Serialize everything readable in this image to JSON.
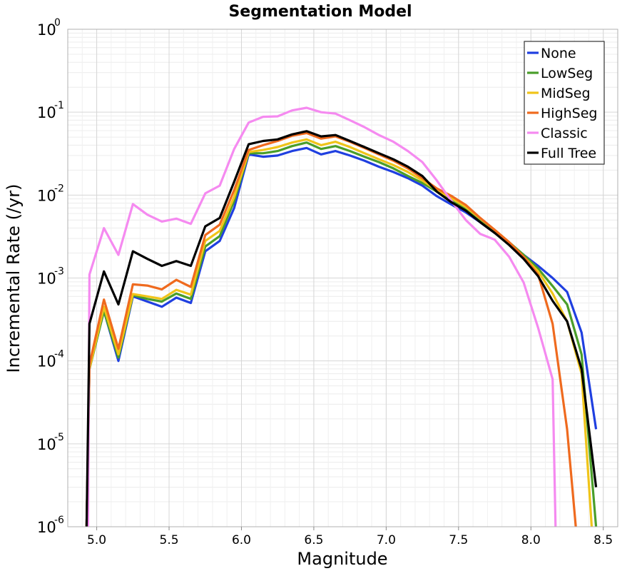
{
  "chart_data": {
    "type": "line",
    "title": "Segmentation Model",
    "xlabel": "Magnitude",
    "ylabel": "Incremental Rate (/yr)",
    "xlim": [
      4.8,
      8.6
    ],
    "ylim": [
      1e-06,
      1
    ],
    "yscale": "log",
    "xticks": [
      "5.0",
      "5.5",
      "6.0",
      "6.5",
      "7.0",
      "7.5",
      "8.0",
      "8.5"
    ],
    "yticks": [
      {
        "base": "10",
        "exp": "-6"
      },
      {
        "base": "10",
        "exp": "-5"
      },
      {
        "base": "10",
        "exp": "-4"
      },
      {
        "base": "10",
        "exp": "-3"
      },
      {
        "base": "10",
        "exp": "-2"
      },
      {
        "base": "10",
        "exp": "-1"
      },
      {
        "base": "10",
        "exp": "0"
      }
    ],
    "grid": true,
    "legend_position": "top-right",
    "series": [
      {
        "name": "None",
        "color": "#1f3fe0",
        "points": [
          [
            4.93,
            1e-06
          ],
          [
            4.95,
            8e-05
          ],
          [
            5.05,
            0.0004
          ],
          [
            5.15,
            0.0001
          ],
          [
            5.25,
            0.0006
          ],
          [
            5.35,
            0.00052
          ],
          [
            5.45,
            0.00045
          ],
          [
            5.55,
            0.00058
          ],
          [
            5.65,
            0.0005
          ],
          [
            5.75,
            0.0021
          ],
          [
            5.85,
            0.0028
          ],
          [
            5.95,
            0.007
          ],
          [
            6.05,
            0.031
          ],
          [
            6.15,
            0.029
          ],
          [
            6.25,
            0.03
          ],
          [
            6.35,
            0.034
          ],
          [
            6.45,
            0.037
          ],
          [
            6.55,
            0.031
          ],
          [
            6.65,
            0.034
          ],
          [
            6.75,
            0.03
          ],
          [
            6.85,
            0.026
          ],
          [
            6.95,
            0.022
          ],
          [
            7.05,
            0.019
          ],
          [
            7.15,
            0.016
          ],
          [
            7.25,
            0.013
          ],
          [
            7.35,
            0.0097
          ],
          [
            7.45,
            0.0077
          ],
          [
            7.55,
            0.0062
          ],
          [
            7.65,
            0.0047
          ],
          [
            7.75,
            0.0035
          ],
          [
            7.85,
            0.0026
          ],
          [
            7.95,
            0.0019
          ],
          [
            8.05,
            0.0014
          ],
          [
            8.15,
            0.001
          ],
          [
            8.25,
            0.00068
          ],
          [
            8.35,
            0.00022
          ],
          [
            8.45,
            1.5e-05
          ]
        ]
      },
      {
        "name": "LowSeg",
        "color": "#4a9e2a",
        "points": [
          [
            4.93,
            1e-06
          ],
          [
            4.95,
            8e-05
          ],
          [
            5.05,
            0.0004
          ],
          [
            5.15,
            0.00011
          ],
          [
            5.25,
            0.00062
          ],
          [
            5.35,
            0.00056
          ],
          [
            5.45,
            0.00052
          ],
          [
            5.55,
            0.00065
          ],
          [
            5.65,
            0.00056
          ],
          [
            5.75,
            0.0024
          ],
          [
            5.85,
            0.0032
          ],
          [
            5.95,
            0.0085
          ],
          [
            6.05,
            0.032
          ],
          [
            6.15,
            0.032
          ],
          [
            6.25,
            0.034
          ],
          [
            6.35,
            0.039
          ],
          [
            6.45,
            0.043
          ],
          [
            6.55,
            0.036
          ],
          [
            6.65,
            0.039
          ],
          [
            6.75,
            0.034
          ],
          [
            6.85,
            0.029
          ],
          [
            6.95,
            0.025
          ],
          [
            7.05,
            0.021
          ],
          [
            7.15,
            0.017
          ],
          [
            7.25,
            0.014
          ],
          [
            7.35,
            0.011
          ],
          [
            7.45,
            0.0085
          ],
          [
            7.55,
            0.0068
          ],
          [
            7.65,
            0.005
          ],
          [
            7.75,
            0.0037
          ],
          [
            7.85,
            0.0027
          ],
          [
            7.95,
            0.0019
          ],
          [
            8.05,
            0.0013
          ],
          [
            8.15,
            0.0008
          ],
          [
            8.25,
            0.00048
          ],
          [
            8.35,
            0.00012
          ],
          [
            8.45,
            1e-06
          ]
        ]
      },
      {
        "name": "MidSeg",
        "color": "#f0c419",
        "points": [
          [
            4.93,
            1e-06
          ],
          [
            4.95,
            8e-05
          ],
          [
            5.05,
            0.00045
          ],
          [
            5.15,
            0.00012
          ],
          [
            5.25,
            0.00064
          ],
          [
            5.35,
            0.0006
          ],
          [
            5.45,
            0.00056
          ],
          [
            5.55,
            0.00072
          ],
          [
            5.65,
            0.00063
          ],
          [
            5.75,
            0.0028
          ],
          [
            5.85,
            0.0037
          ],
          [
            5.95,
            0.0095
          ],
          [
            6.05,
            0.033
          ],
          [
            6.15,
            0.035
          ],
          [
            6.25,
            0.038
          ],
          [
            6.35,
            0.043
          ],
          [
            6.45,
            0.047
          ],
          [
            6.55,
            0.04
          ],
          [
            6.65,
            0.044
          ],
          [
            6.75,
            0.038
          ],
          [
            6.85,
            0.032
          ],
          [
            6.95,
            0.027
          ],
          [
            7.05,
            0.023
          ],
          [
            7.15,
            0.019
          ],
          [
            7.25,
            0.015
          ],
          [
            7.35,
            0.0115
          ],
          [
            7.45,
            0.0092
          ],
          [
            7.55,
            0.0072
          ],
          [
            7.65,
            0.0052
          ],
          [
            7.75,
            0.0038
          ],
          [
            7.85,
            0.0027
          ],
          [
            7.95,
            0.0018
          ],
          [
            8.05,
            0.0012
          ],
          [
            8.15,
            0.00065
          ],
          [
            8.25,
            0.0003
          ],
          [
            8.35,
            7e-05
          ],
          [
            8.42,
            1e-06
          ]
        ]
      },
      {
        "name": "HighSeg",
        "color": "#ef6a1e",
        "points": [
          [
            4.93,
            1e-06
          ],
          [
            4.95,
            9e-05
          ],
          [
            5.05,
            0.00055
          ],
          [
            5.15,
            0.00014
          ],
          [
            5.25,
            0.00084
          ],
          [
            5.35,
            0.00081
          ],
          [
            5.45,
            0.00073
          ],
          [
            5.55,
            0.00095
          ],
          [
            5.65,
            0.00078
          ],
          [
            5.75,
            0.0033
          ],
          [
            5.85,
            0.0044
          ],
          [
            5.95,
            0.0115
          ],
          [
            6.05,
            0.035
          ],
          [
            6.15,
            0.04
          ],
          [
            6.25,
            0.045
          ],
          [
            6.35,
            0.052
          ],
          [
            6.45,
            0.056
          ],
          [
            6.55,
            0.048
          ],
          [
            6.65,
            0.051
          ],
          [
            6.75,
            0.044
          ],
          [
            6.85,
            0.037
          ],
          [
            6.95,
            0.031
          ],
          [
            7.05,
            0.026
          ],
          [
            7.15,
            0.021
          ],
          [
            7.25,
            0.016
          ],
          [
            7.35,
            0.012
          ],
          [
            7.45,
            0.0098
          ],
          [
            7.55,
            0.0076
          ],
          [
            7.65,
            0.0053
          ],
          [
            7.75,
            0.0038
          ],
          [
            7.85,
            0.0027
          ],
          [
            7.95,
            0.0018
          ],
          [
            8.05,
            0.0011
          ],
          [
            8.15,
            0.00028
          ],
          [
            8.25,
            1.5e-05
          ],
          [
            8.31,
            1e-06
          ]
        ]
      },
      {
        "name": "Classic",
        "color": "#f58af0",
        "points": [
          [
            4.94,
            1e-06
          ],
          [
            4.95,
            0.0011
          ],
          [
            5.05,
            0.004
          ],
          [
            5.15,
            0.0019
          ],
          [
            5.25,
            0.0078
          ],
          [
            5.35,
            0.0058
          ],
          [
            5.45,
            0.0048
          ],
          [
            5.55,
            0.0052
          ],
          [
            5.65,
            0.0045
          ],
          [
            5.75,
            0.0105
          ],
          [
            5.85,
            0.013
          ],
          [
            5.95,
            0.036
          ],
          [
            6.05,
            0.075
          ],
          [
            6.15,
            0.088
          ],
          [
            6.25,
            0.089
          ],
          [
            6.35,
            0.105
          ],
          [
            6.45,
            0.113
          ],
          [
            6.55,
            0.1
          ],
          [
            6.65,
            0.096
          ],
          [
            6.75,
            0.08
          ],
          [
            6.85,
            0.066
          ],
          [
            6.95,
            0.053
          ],
          [
            7.05,
            0.044
          ],
          [
            7.15,
            0.034
          ],
          [
            7.25,
            0.025
          ],
          [
            7.35,
            0.015
          ],
          [
            7.45,
            0.0085
          ],
          [
            7.55,
            0.005
          ],
          [
            7.65,
            0.0034
          ],
          [
            7.75,
            0.0029
          ],
          [
            7.85,
            0.0018
          ],
          [
            7.95,
            0.00088
          ],
          [
            8.05,
            0.00025
          ],
          [
            8.15,
            6e-05
          ],
          [
            8.17,
            1e-06
          ]
        ]
      },
      {
        "name": "Full Tree",
        "color": "#000000",
        "points": [
          [
            4.93,
            1e-06
          ],
          [
            4.95,
            0.00028
          ],
          [
            5.05,
            0.0012
          ],
          [
            5.15,
            0.00048
          ],
          [
            5.25,
            0.0021
          ],
          [
            5.35,
            0.0017
          ],
          [
            5.45,
            0.0014
          ],
          [
            5.55,
            0.0016
          ],
          [
            5.65,
            0.0014
          ],
          [
            5.75,
            0.0042
          ],
          [
            5.85,
            0.0053
          ],
          [
            5.95,
            0.0145
          ],
          [
            6.05,
            0.041
          ],
          [
            6.15,
            0.045
          ],
          [
            6.25,
            0.047
          ],
          [
            6.35,
            0.054
          ],
          [
            6.45,
            0.059
          ],
          [
            6.55,
            0.051
          ],
          [
            6.65,
            0.053
          ],
          [
            6.75,
            0.045
          ],
          [
            6.85,
            0.038
          ],
          [
            6.95,
            0.032
          ],
          [
            7.05,
            0.027
          ],
          [
            7.15,
            0.022
          ],
          [
            7.25,
            0.017
          ],
          [
            7.35,
            0.011
          ],
          [
            7.45,
            0.0082
          ],
          [
            7.55,
            0.0065
          ],
          [
            7.65,
            0.0047
          ],
          [
            7.75,
            0.0035
          ],
          [
            7.85,
            0.0025
          ],
          [
            7.95,
            0.0017
          ],
          [
            8.05,
            0.00105
          ],
          [
            8.15,
            0.00053
          ],
          [
            8.25,
            0.0003
          ],
          [
            8.35,
            8e-05
          ],
          [
            8.45,
            3e-06
          ]
        ]
      }
    ]
  }
}
